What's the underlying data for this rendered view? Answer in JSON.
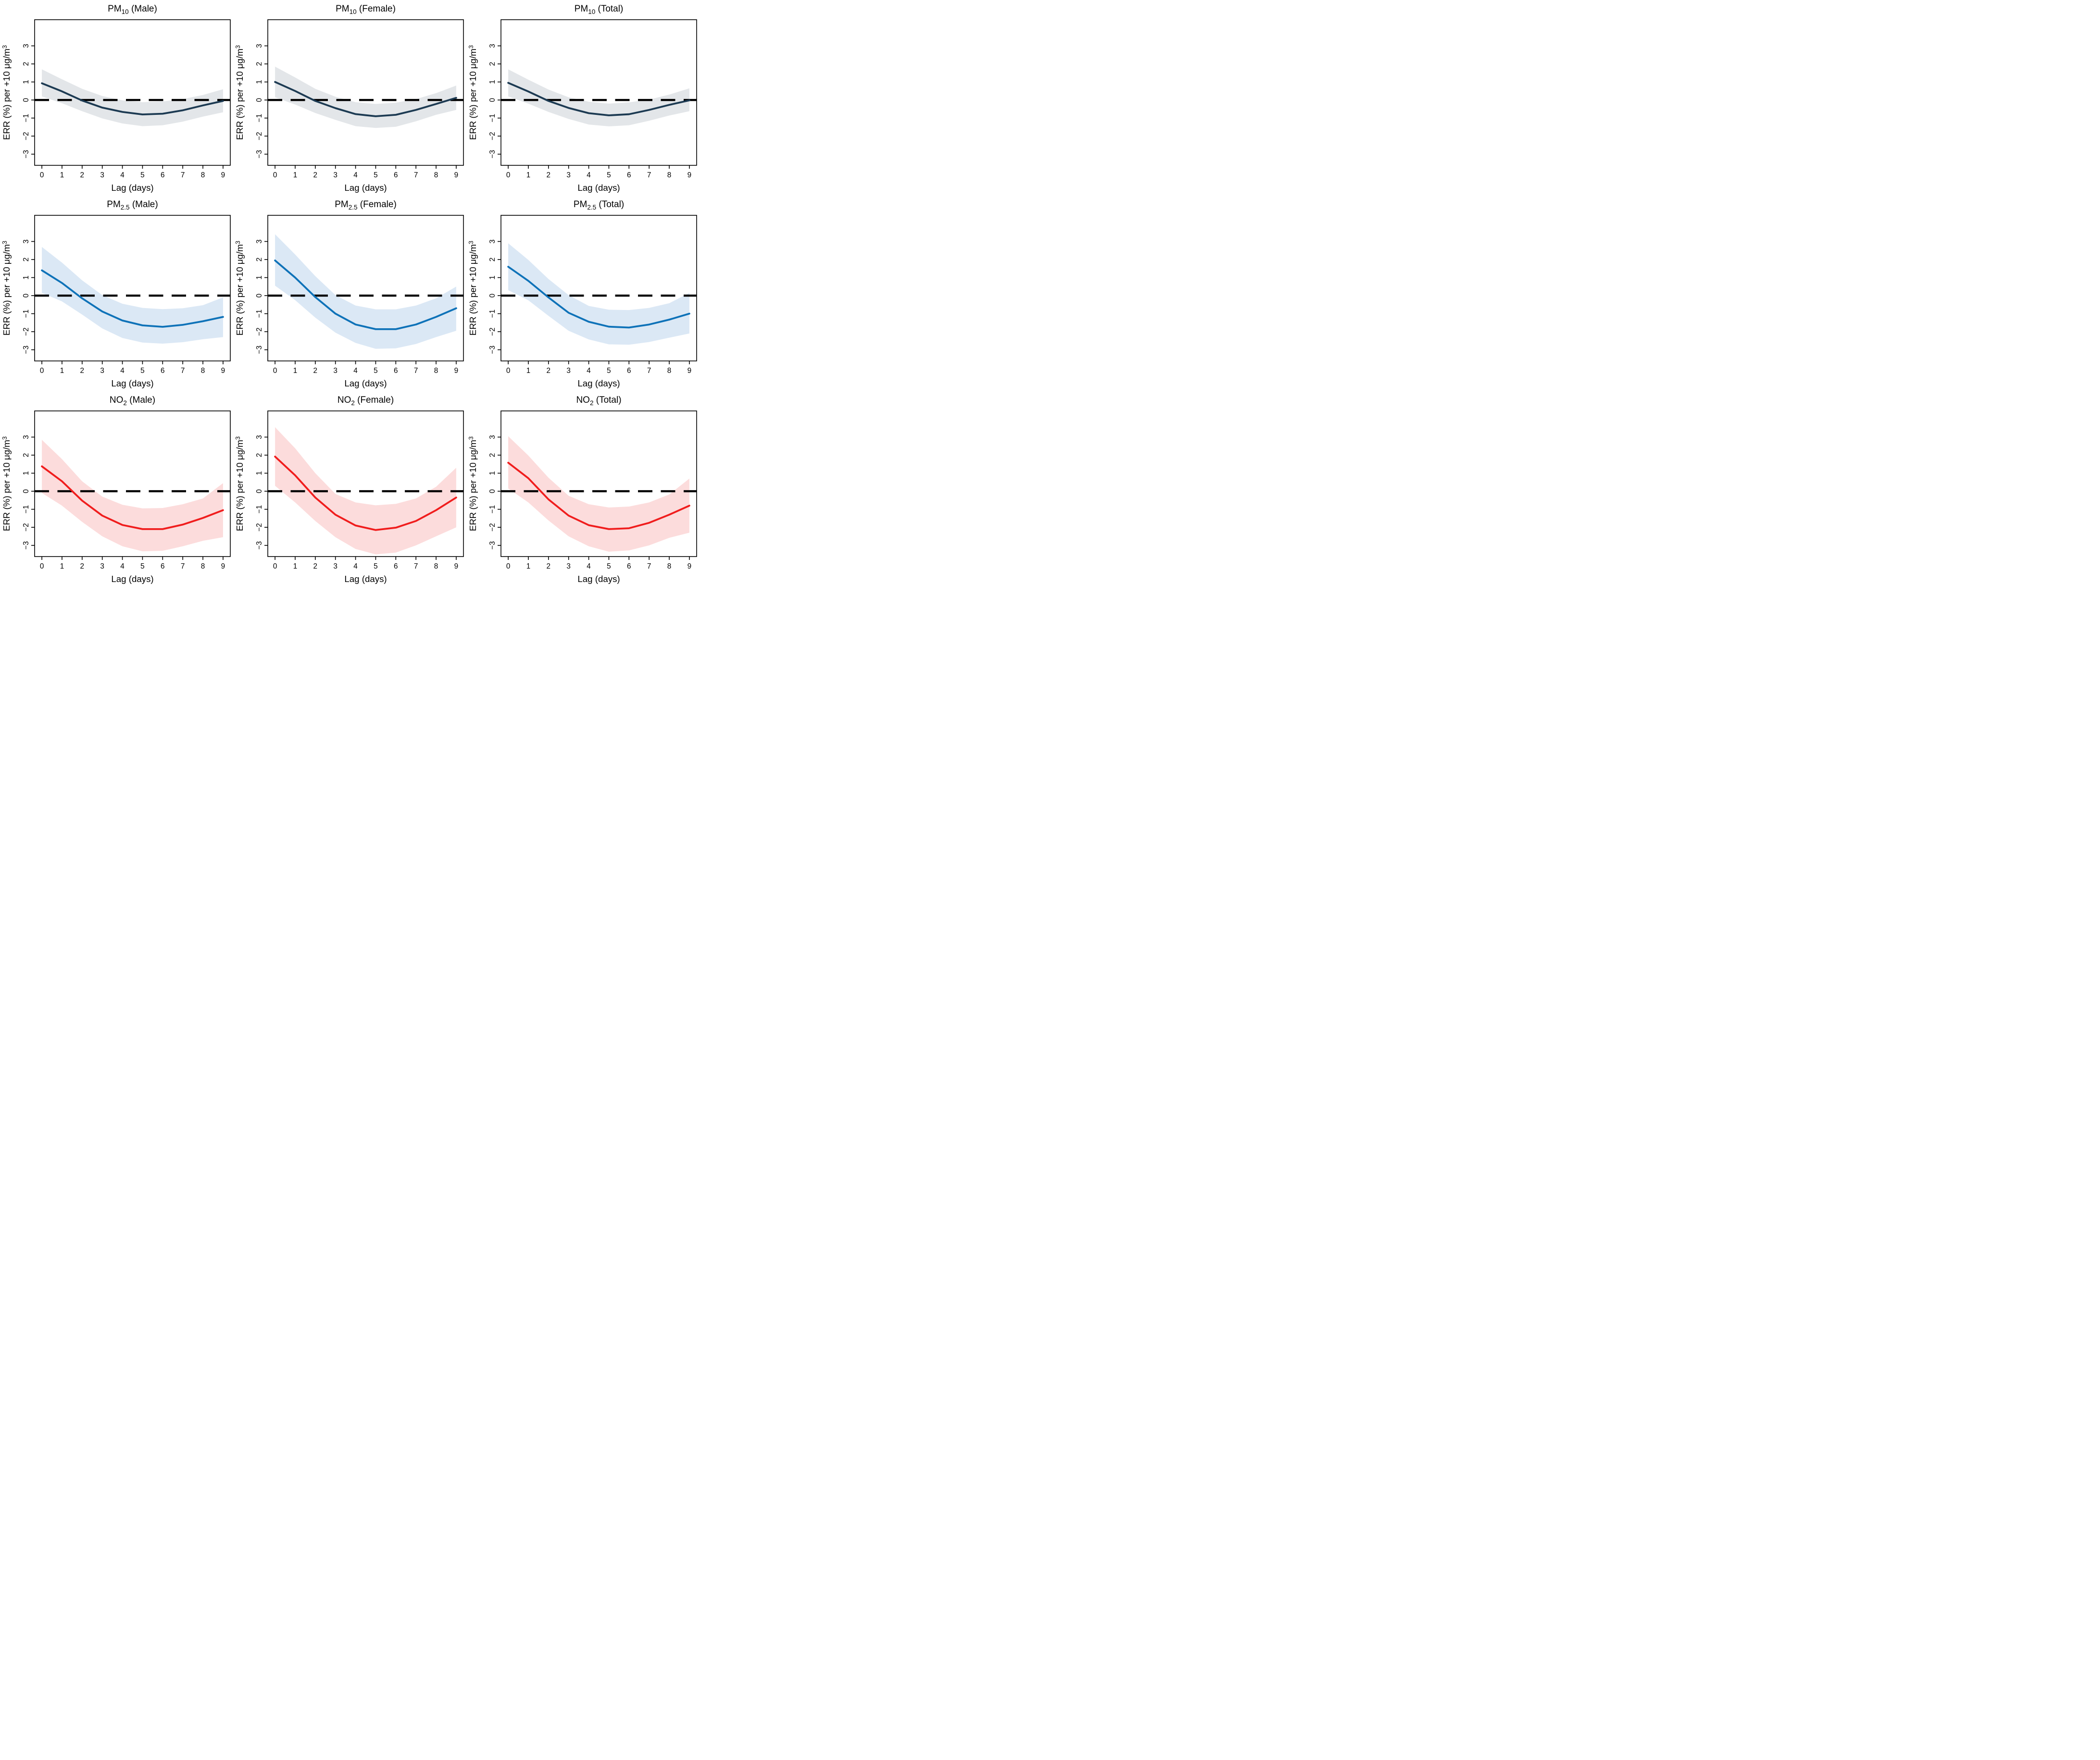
{
  "figure": {
    "xlabel": "Lag (days)",
    "ylabel_main": "ERR (%) per +10 μg/m",
    "ylabel_sup": "3",
    "background_color": "#ffffff",
    "box_color": "#000000",
    "zero_line_color": "#000000"
  },
  "chart_data": {
    "type": "line",
    "x": [
      0,
      1,
      2,
      3,
      4,
      5,
      6,
      7,
      8,
      9
    ],
    "x_ticks": [
      0,
      1,
      2,
      3,
      4,
      5,
      6,
      7,
      8,
      9
    ],
    "y_ticks": [
      -3,
      -2,
      -1,
      0,
      1,
      2,
      3
    ],
    "xlim": [
      -0.36,
      9.36
    ],
    "ylim": [
      -3.62,
      4.45
    ],
    "xlabel": "Lag (days)",
    "ylabel": "ERR (%) per +10 μg/m³",
    "zero_reference": 0,
    "legend_position": "none",
    "grid": false,
    "panels": [
      {
        "id": "pm10-male",
        "title_base": "PM",
        "title_sub": "10",
        "title_rest": " (Male)",
        "line_color": "#1c3a52",
        "band_color": "#e3e6e9",
        "series": {
          "estimate": [
            0.93,
            0.48,
            -0.03,
            -0.42,
            -0.66,
            -0.8,
            -0.76,
            -0.57,
            -0.3,
            -0.05
          ],
          "ci_upper": [
            1.7,
            1.15,
            0.62,
            0.22,
            -0.02,
            -0.12,
            -0.08,
            0.05,
            0.28,
            0.6
          ],
          "ci_lower": [
            0.2,
            -0.18,
            -0.62,
            -1.02,
            -1.3,
            -1.45,
            -1.4,
            -1.2,
            -0.92,
            -0.68
          ]
        }
      },
      {
        "id": "pm10-female",
        "title_base": "PM",
        "title_sub": "10",
        "title_rest": " (Female)",
        "line_color": "#1c3a52",
        "band_color": "#e3e6e9",
        "series": {
          "estimate": [
            1.0,
            0.5,
            -0.05,
            -0.45,
            -0.78,
            -0.9,
            -0.82,
            -0.55,
            -0.22,
            0.12
          ],
          "ci_upper": [
            1.85,
            1.25,
            0.62,
            0.18,
            -0.12,
            -0.22,
            -0.15,
            0.05,
            0.38,
            0.8
          ],
          "ci_lower": [
            0.15,
            -0.25,
            -0.72,
            -1.1,
            -1.45,
            -1.55,
            -1.48,
            -1.18,
            -0.82,
            -0.55
          ]
        }
      },
      {
        "id": "pm10-total",
        "title_base": "PM",
        "title_sub": "10",
        "title_rest": " (Total)",
        "line_color": "#1c3a52",
        "band_color": "#e3e6e9",
        "series": {
          "estimate": [
            0.95,
            0.47,
            -0.05,
            -0.44,
            -0.73,
            -0.85,
            -0.79,
            -0.55,
            -0.27,
            -0.02
          ],
          "ci_upper": [
            1.7,
            1.13,
            0.58,
            0.15,
            -0.1,
            -0.2,
            -0.13,
            0.02,
            0.3,
            0.65
          ],
          "ci_lower": [
            0.2,
            -0.2,
            -0.66,
            -1.05,
            -1.36,
            -1.46,
            -1.4,
            -1.15,
            -0.86,
            -0.62
          ]
        }
      },
      {
        "id": "pm25-male",
        "title_base": "PM",
        "title_sub": "2.5",
        "title_rest": " (Male)",
        "line_color": "#0e72b8",
        "band_color": "#dbe8f5",
        "series": {
          "estimate": [
            1.4,
            0.7,
            -0.15,
            -0.88,
            -1.38,
            -1.65,
            -1.73,
            -1.62,
            -1.42,
            -1.18
          ],
          "ci_upper": [
            2.7,
            1.83,
            0.85,
            0.03,
            -0.45,
            -0.68,
            -0.75,
            -0.7,
            -0.53,
            -0.1
          ],
          "ci_lower": [
            0.15,
            -0.32,
            -1.05,
            -1.82,
            -2.35,
            -2.6,
            -2.66,
            -2.58,
            -2.42,
            -2.3
          ]
        }
      },
      {
        "id": "pm25-female",
        "title_base": "PM",
        "title_sub": "2.5",
        "title_rest": " (Female)",
        "line_color": "#0e72b8",
        "band_color": "#dbe8f5",
        "series": {
          "estimate": [
            1.95,
            1.0,
            -0.08,
            -1.0,
            -1.6,
            -1.86,
            -1.86,
            -1.6,
            -1.18,
            -0.7
          ],
          "ci_upper": [
            3.4,
            2.28,
            1.08,
            0.03,
            -0.55,
            -0.76,
            -0.76,
            -0.55,
            -0.15,
            0.5
          ],
          "ci_lower": [
            0.55,
            -0.25,
            -1.22,
            -2.05,
            -2.62,
            -2.95,
            -2.92,
            -2.68,
            -2.3,
            -1.95
          ]
        }
      },
      {
        "id": "pm25-total",
        "title_base": "PM",
        "title_sub": "2.5",
        "title_rest": " (Total)",
        "line_color": "#0e72b8",
        "band_color": "#dbe8f5",
        "series": {
          "estimate": [
            1.6,
            0.82,
            -0.1,
            -0.95,
            -1.45,
            -1.72,
            -1.77,
            -1.6,
            -1.33,
            -1.0
          ],
          "ci_upper": [
            2.9,
            1.98,
            0.92,
            0.03,
            -0.57,
            -0.78,
            -0.8,
            -0.68,
            -0.42,
            0.15
          ],
          "ci_lower": [
            0.3,
            -0.26,
            -1.12,
            -1.95,
            -2.43,
            -2.7,
            -2.72,
            -2.57,
            -2.33,
            -2.1
          ]
        }
      },
      {
        "id": "no2-male",
        "title_base": "NO",
        "title_sub": "2",
        "title_rest": " (Male)",
        "line_color": "#f01d1d",
        "band_color": "#fcdcdc",
        "series": {
          "estimate": [
            1.38,
            0.55,
            -0.52,
            -1.35,
            -1.87,
            -2.1,
            -2.1,
            -1.85,
            -1.48,
            -1.05
          ],
          "ci_upper": [
            2.85,
            1.78,
            0.55,
            -0.3,
            -0.75,
            -0.95,
            -0.93,
            -0.72,
            -0.4,
            0.45
          ],
          "ci_lower": [
            -0.1,
            -0.8,
            -1.7,
            -2.5,
            -3.05,
            -3.33,
            -3.3,
            -3.05,
            -2.75,
            -2.55
          ]
        }
      },
      {
        "id": "no2-female",
        "title_base": "NO",
        "title_sub": "2",
        "title_rest": " (Female)",
        "line_color": "#f01d1d",
        "band_color": "#fcdcdc",
        "series": {
          "estimate": [
            1.92,
            0.88,
            -0.35,
            -1.3,
            -1.9,
            -2.15,
            -2.02,
            -1.65,
            -1.05,
            -0.35
          ],
          "ci_upper": [
            3.55,
            2.38,
            1.0,
            -0.15,
            -0.62,
            -0.78,
            -0.7,
            -0.4,
            0.25,
            1.3
          ],
          "ci_lower": [
            0.3,
            -0.62,
            -1.65,
            -2.55,
            -3.2,
            -3.5,
            -3.4,
            -3.0,
            -2.5,
            -2.0
          ]
        }
      },
      {
        "id": "no2-total",
        "title_base": "NO",
        "title_sub": "2",
        "title_rest": " (Total)",
        "line_color": "#f01d1d",
        "band_color": "#fcdcdc",
        "series": {
          "estimate": [
            1.58,
            0.72,
            -0.45,
            -1.35,
            -1.88,
            -2.1,
            -2.05,
            -1.75,
            -1.3,
            -0.8
          ],
          "ci_upper": [
            3.05,
            1.98,
            0.75,
            -0.25,
            -0.72,
            -0.9,
            -0.85,
            -0.62,
            -0.18,
            0.7
          ],
          "ci_lower": [
            0.15,
            -0.62,
            -1.62,
            -2.5,
            -3.05,
            -3.35,
            -3.28,
            -3.0,
            -2.58,
            -2.3
          ]
        }
      }
    ]
  }
}
